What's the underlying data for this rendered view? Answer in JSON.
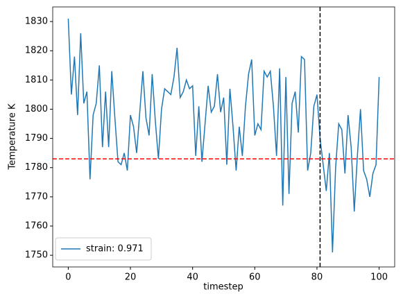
{
  "chart_data": {
    "type": "line",
    "xlabel": "timestep",
    "ylabel": "Temperature K",
    "x": [
      0,
      1,
      2,
      3,
      4,
      5,
      6,
      7,
      8,
      9,
      10,
      11,
      12,
      13,
      14,
      15,
      16,
      17,
      18,
      19,
      20,
      21,
      22,
      23,
      24,
      25,
      26,
      27,
      28,
      29,
      30,
      31,
      32,
      33,
      34,
      35,
      36,
      37,
      38,
      39,
      40,
      41,
      42,
      43,
      44,
      45,
      46,
      47,
      48,
      49,
      50,
      51,
      52,
      53,
      54,
      55,
      56,
      57,
      58,
      59,
      60,
      61,
      62,
      63,
      64,
      65,
      66,
      67,
      68,
      69,
      70,
      71,
      72,
      73,
      74,
      75,
      76,
      77,
      78,
      79,
      80,
      81,
      82,
      83,
      84,
      85,
      86,
      87,
      88,
      89,
      90,
      91,
      92,
      93,
      94,
      95,
      96,
      97,
      98,
      99,
      100
    ],
    "series": [
      {
        "name": "strain: 0.971",
        "color": "#1f77b4",
        "values": [
          1831,
          1805,
          1818,
          1798,
          1826,
          1802,
          1806,
          1776,
          1798,
          1802,
          1815,
          1787,
          1806,
          1787,
          1813,
          1797,
          1782,
          1781,
          1785,
          1779,
          1798,
          1794,
          1785,
          1799,
          1813,
          1797,
          1791,
          1812,
          1796,
          1783,
          1800,
          1807,
          1806,
          1805,
          1811,
          1821,
          1804,
          1806,
          1810,
          1807,
          1808,
          1784,
          1801,
          1782,
          1795,
          1808,
          1799,
          1801,
          1812,
          1799,
          1804,
          1781,
          1807,
          1794,
          1779,
          1794,
          1784,
          1801,
          1812,
          1817,
          1791,
          1795,
          1793,
          1813,
          1811,
          1813,
          1801,
          1784,
          1814,
          1767,
          1811,
          1771,
          1802,
          1806,
          1792,
          1818,
          1817,
          1779,
          1785,
          1801,
          1805,
          1790,
          1781,
          1772,
          1785,
          1751,
          1780,
          1795,
          1793,
          1778,
          1798,
          1787,
          1765,
          1784,
          1800,
          1779,
          1776,
          1770,
          1778,
          1781,
          1811
        ]
      }
    ],
    "xlim": [
      -5,
      105
    ],
    "ylim": [
      1746,
      1835
    ],
    "xticks": [
      0,
      20,
      40,
      60,
      80,
      100
    ],
    "yticks": [
      1750,
      1760,
      1770,
      1780,
      1790,
      1800,
      1810,
      1820,
      1830
    ],
    "hline": {
      "value": 1783,
      "color": "#ff0000"
    },
    "vline": {
      "value": 81,
      "color": "#000000"
    },
    "legend": "lower left"
  }
}
